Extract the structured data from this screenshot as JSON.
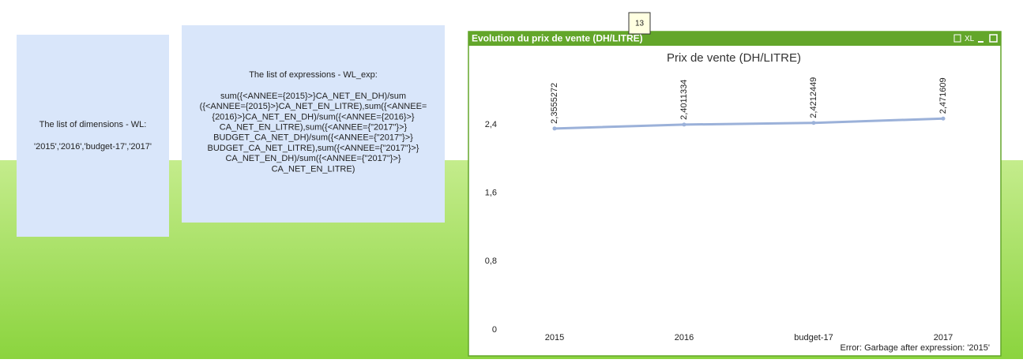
{
  "tooltip": "13",
  "textboxes": [
    {
      "lines": [
        "The list of dimensions - WL:",
        "'2015','2016','budget-17','2017'"
      ]
    },
    {
      "lines": [
        "The list of expressions - WL_exp:",
        "sum({<ANNEE={2015}>}CA_NET_EN_DH)/sum",
        "({<ANNEE={2015}>}CA_NET_EN_LITRE),sum({<ANNEE=",
        "{2016}>}CA_NET_EN_DH)/sum({<ANNEE={2016}>}",
        "CA_NET_EN_LITRE),sum({<ANNEE={\"2017\"}>}",
        "BUDGET_CA_NET_DH)/sum({<ANNEE={\"2017\"}>}",
        "BUDGET_CA_NET_LITRE),sum({<ANNEE={\"2017\"}>}",
        "CA_NET_EN_DH)/sum({<ANNEE={\"2017\"}>}",
        "CA_NET_EN_LITRE)"
      ]
    }
  ],
  "window": {
    "title": "Evolution du prix de vente (DH/LITRE)",
    "xl_label": "XL"
  },
  "chart_data": {
    "type": "line",
    "title": "Prix de vente (DH/LITRE)",
    "categories": [
      "2015",
      "2016",
      "budget-17",
      "2017"
    ],
    "series": [
      {
        "name": "Prix de vente",
        "color": "#9bb1d9",
        "values": [
          2.3555272,
          2.4011334,
          2.4212449,
          2.471609
        ],
        "value_labels": [
          "2,3555272",
          "2,4011334",
          "2,4212449",
          "2,471609"
        ]
      }
    ],
    "ylim": [
      0,
      3.0
    ],
    "yticks": [
      0,
      {
        "value": 0.8,
        "label": "0,8"
      },
      {
        "value": 1.6,
        "label": "1,6"
      },
      {
        "value": 2.4,
        "label": "2,4"
      }
    ],
    "annotation": "Error: Garbage after expression: '2015'"
  }
}
